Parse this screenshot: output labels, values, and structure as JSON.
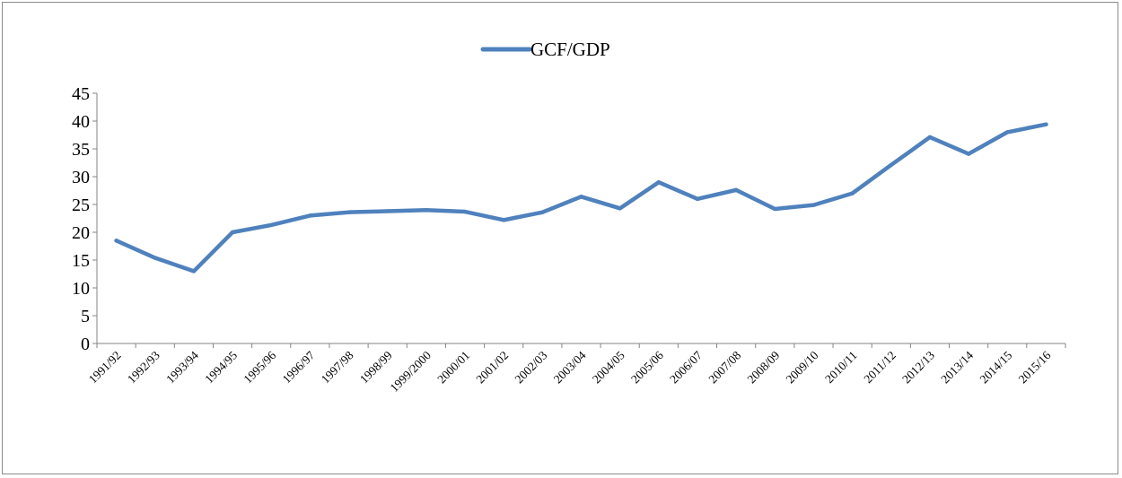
{
  "chart_data": {
    "type": "line",
    "title": "",
    "xlabel": "",
    "ylabel": "",
    "categories": [
      "1991/92",
      "1992/93",
      "1993/94",
      "1994/95",
      "1995/96",
      "1996/97",
      "1997/98",
      "1998/99",
      "1999/2000",
      "2000/01",
      "2001/02",
      "2002/03",
      "2003/04",
      "2004/05",
      "2005/06",
      "2006/07",
      "2007/08",
      "2008/09",
      "2009/10",
      "2010/11",
      "2011/12",
      "2012/13",
      "2013/14",
      "2014/15",
      "2015/16"
    ],
    "series": [
      {
        "name": "GCF/GDP",
        "color": "#4F81BD",
        "values": [
          18.5,
          15.4,
          13.0,
          20.0,
          21.3,
          23.0,
          23.6,
          23.8,
          24.0,
          23.7,
          22.2,
          23.6,
          26.4,
          24.3,
          29.0,
          26.0,
          27.6,
          24.2,
          24.9,
          27.0,
          32.1,
          37.1,
          34.1,
          38.0,
          39.4
        ]
      }
    ],
    "ylim": [
      0,
      45
    ],
    "yticks": [
      0,
      5,
      10,
      15,
      20,
      25,
      30,
      35,
      40,
      45
    ],
    "grid": false,
    "legend_position": "top"
  }
}
